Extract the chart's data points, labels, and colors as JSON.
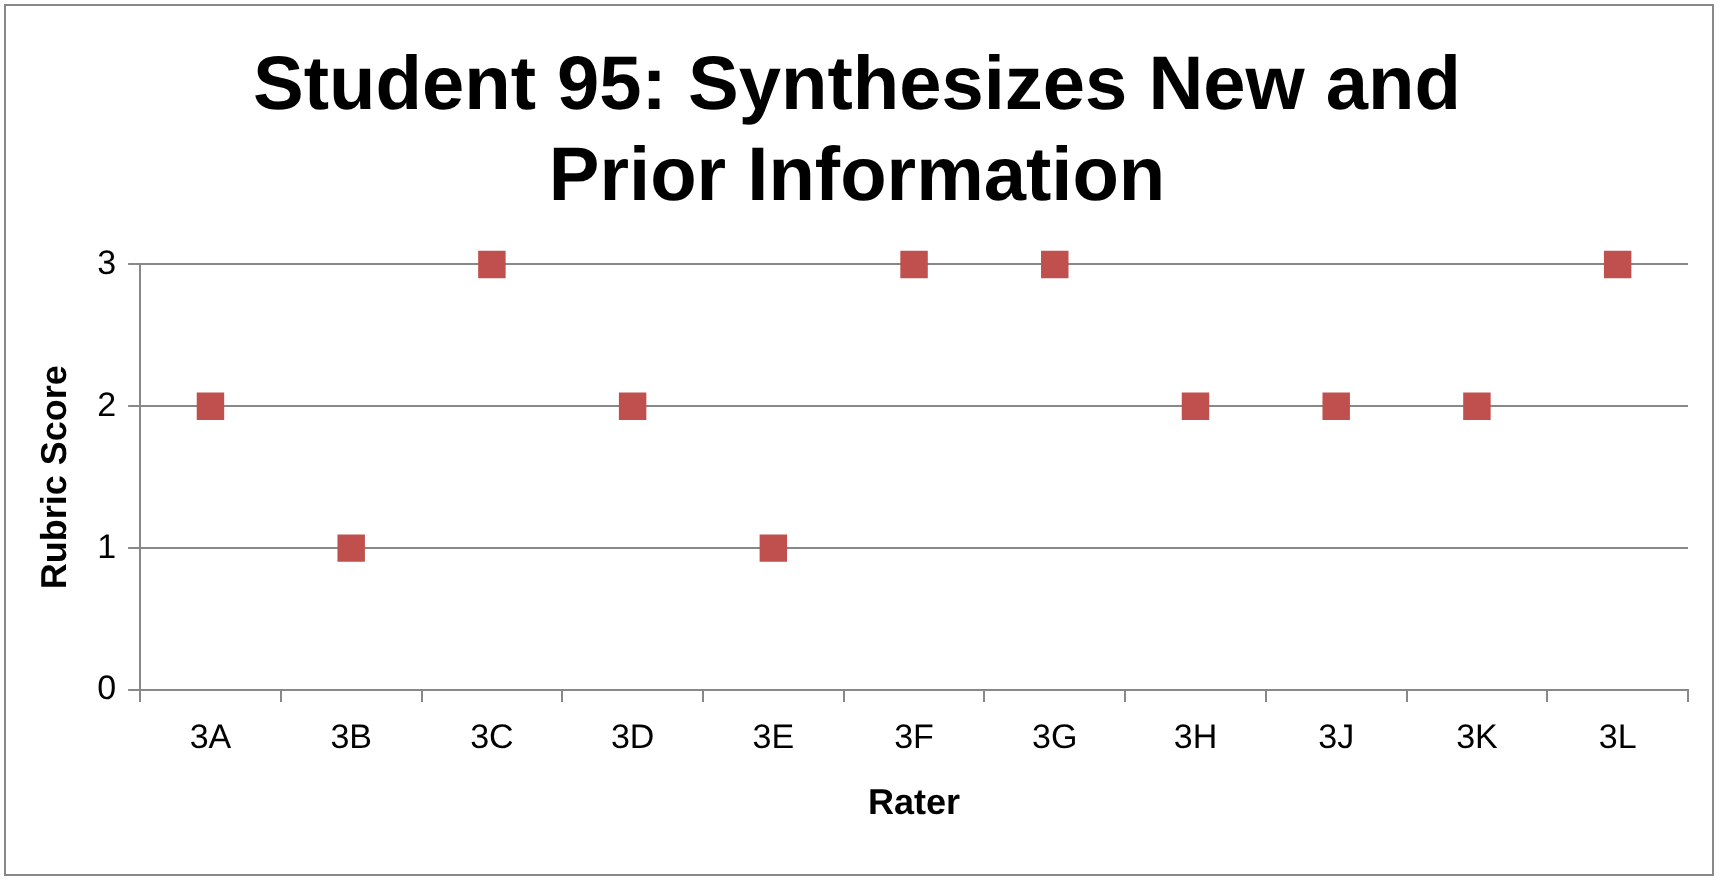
{
  "chart_data": {
    "type": "scatter",
    "title": "Student 95: Synthesizes New and Prior Information",
    "xlabel": "Rater",
    "ylabel": "Rubric Score",
    "categories": [
      "3A",
      "3B",
      "3C",
      "3D",
      "3E",
      "3F",
      "3G",
      "3H",
      "3J",
      "3K",
      "3L"
    ],
    "series": [
      {
        "color": "#c0504d",
        "values": [
          2,
          1,
          3,
          2,
          1,
          3,
          3,
          2,
          2,
          2,
          3
        ]
      }
    ],
    "ylim": [
      0,
      3
    ],
    "yticks": [
      0,
      1,
      2,
      3
    ],
    "grid": "y",
    "legend": false,
    "marker": "square"
  }
}
